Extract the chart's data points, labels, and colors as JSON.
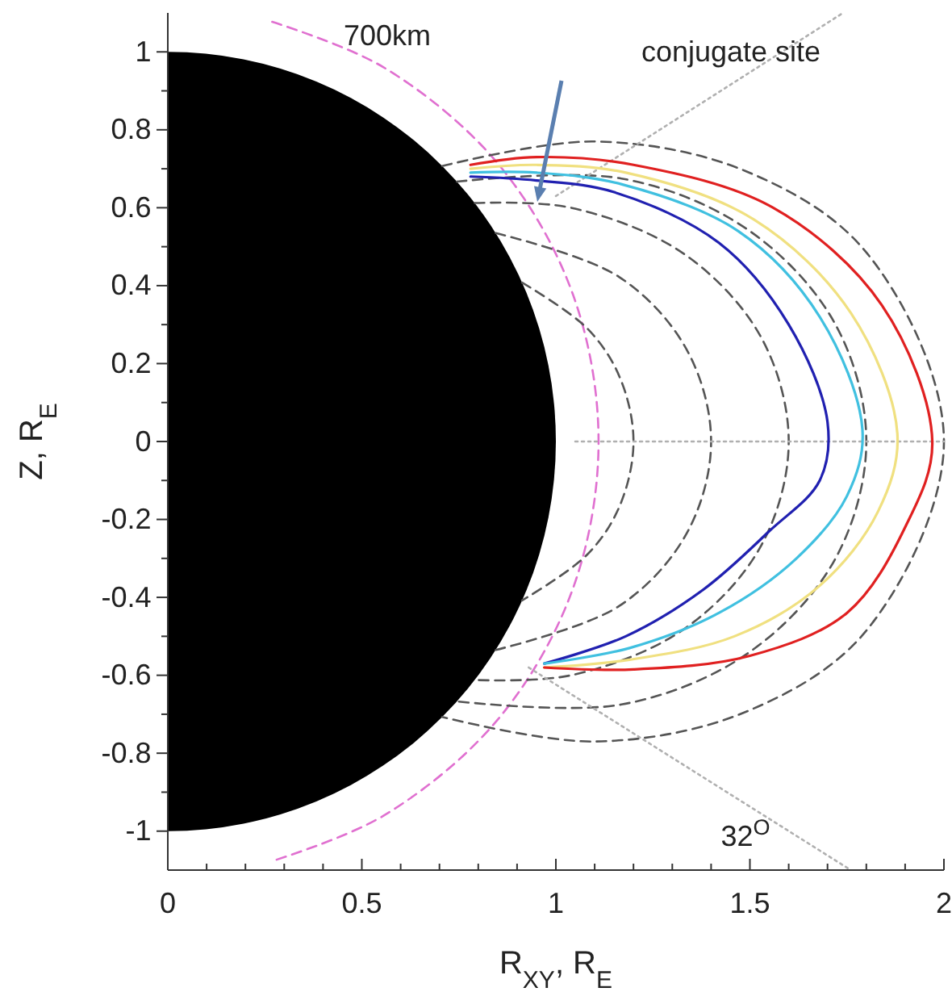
{
  "chart_data": {
    "type": "line",
    "xlabel": "R$_{XY}$, R$_{E}$",
    "ylabel": "Z, R$_{E}$",
    "xlim": [
      0,
      2
    ],
    "ylim": [
      -1.1,
      1.1
    ],
    "xticks": [
      0,
      {
        "value": 0.1,
        "label": null
      },
      {
        "value": 0.2,
        "label": null
      },
      {
        "value": 0.3,
        "label": null
      },
      {
        "value": 0.4,
        "label": null
      },
      0.5,
      {
        "value": 0.6,
        "label": null
      },
      {
        "value": 0.7,
        "label": null
      },
      {
        "value": 0.8,
        "label": null
      },
      {
        "value": 0.9,
        "label": null
      },
      1,
      {
        "value": 1.1,
        "label": null
      },
      {
        "value": 1.2,
        "label": null
      },
      {
        "value": 1.3,
        "label": null
      },
      {
        "value": 1.4,
        "label": null
      },
      1.5,
      {
        "value": 1.6,
        "label": null
      },
      {
        "value": 1.7,
        "label": null
      },
      {
        "value": 1.8,
        "label": null
      },
      {
        "value": 1.9,
        "label": null
      },
      2
    ],
    "yticks": [
      -1,
      {
        "value": -0.9,
        "label": null
      },
      -0.8,
      {
        "value": -0.7,
        "label": null
      },
      -0.6,
      {
        "value": -0.5,
        "label": null
      },
      -0.4,
      {
        "value": -0.3,
        "label": null
      },
      -0.2,
      {
        "value": -0.1,
        "label": null
      },
      0,
      {
        "value": 0.1,
        "label": null
      },
      0.2,
      {
        "value": 0.3,
        "label": null
      },
      0.4,
      {
        "value": 0.5,
        "label": null
      },
      0.6,
      {
        "value": 0.7,
        "label": null
      },
      0.8,
      {
        "value": 0.9,
        "label": null
      },
      1
    ],
    "grid": false,
    "marker": "none",
    "series": [
      {
        "color": "#e070d0",
        "line_style": "dashed",
        "x": [
          0.269,
          0.555,
          0.85,
          1.043,
          1.11,
          1.043,
          0.85,
          0.555,
          0.269
        ],
        "values": [
          1.077,
          0.961,
          0.714,
          0.38,
          0,
          -0.38,
          -0.714,
          -0.961,
          -1.077
        ]
      },
      {
        "color": "#555555",
        "line_style": "dashed",
        "x": [
          0.913,
          1.081,
          1.165,
          1.2,
          1.165,
          1.081,
          0.913
        ],
        "values": [
          0.408,
          0.29,
          0.164,
          0,
          -0.164,
          -0.29,
          -0.408
        ]
      },
      {
        "color": "#555555",
        "line_style": "dashed",
        "x": [
          0.845,
          1.162,
          1.337,
          1.4,
          1.337,
          1.162,
          0.845
        ],
        "values": [
          0.535,
          0.423,
          0.236,
          0,
          -0.236,
          -0.423,
          -0.535
        ]
      },
      {
        "color": "#555555",
        "line_style": "dashed",
        "x": [
          0.791,
          1.039,
          1.328,
          1.528,
          1.6,
          1.528,
          1.328,
          1.039,
          0.791
        ],
        "values": [
          0.612,
          0.6,
          0.483,
          0.269,
          0,
          -0.269,
          -0.483,
          -0.6,
          -0.612
        ]
      },
      {
        "color": "#555555",
        "line_style": "dashed",
        "x": [
          0.745,
          1.169,
          1.494,
          1.719,
          1.8,
          1.719,
          1.494,
          1.169,
          0.745
        ],
        "values": [
          0.667,
          0.675,
          0.544,
          0.303,
          0,
          -0.303,
          -0.544,
          -0.675,
          -0.667
        ]
      },
      {
        "color": "#555555",
        "line_style": "dashed",
        "x": [
          0.707,
          1.099,
          1.489,
          1.802,
          2.0,
          1.802,
          1.489,
          1.099,
          0.707
        ],
        "values": [
          0.707,
          0.77,
          0.694,
          0.483,
          0,
          -0.483,
          -0.694,
          -0.77,
          -0.707
        ]
      },
      {
        "color": "#b0b0b0",
        "line_style": "dotted",
        "x": [
          1.0,
          1.74
        ],
        "values": [
          0.63,
          1.1
        ]
      },
      {
        "color": "#b0b0b0",
        "line_style": "dotted",
        "x": [
          0.93,
          1.76
        ],
        "values": [
          -0.58,
          -1.1
        ]
      },
      {
        "color": "#b0b0b0",
        "line_style": "dotted",
        "x": [
          1.05,
          2.0
        ],
        "values": [
          0,
          0
        ]
      },
      {
        "color": "#2020b0",
        "line_style": "solid",
        "x": [
          0.78,
          0.95,
          1.15,
          1.42,
          1.6,
          1.7,
          1.68,
          1.55,
          1.38,
          1.18,
          0.97
        ],
        "values": [
          0.68,
          0.67,
          0.64,
          0.51,
          0.3,
          0.05,
          -0.1,
          -0.23,
          -0.38,
          -0.5,
          -0.57
        ]
      },
      {
        "color": "#40c0e0",
        "line_style": "solid",
        "x": [
          0.78,
          0.95,
          1.17,
          1.47,
          1.68,
          1.79,
          1.75,
          1.62,
          1.42,
          1.19,
          0.97
        ],
        "values": [
          0.69,
          0.69,
          0.66,
          0.54,
          0.32,
          0.03,
          -0.14,
          -0.3,
          -0.44,
          -0.53,
          -0.57
        ]
      },
      {
        "color": "#f0e080",
        "line_style": "solid",
        "x": [
          0.78,
          0.95,
          1.18,
          1.51,
          1.76,
          1.88,
          1.83,
          1.68,
          1.46,
          1.19,
          0.97
        ],
        "values": [
          0.7,
          0.71,
          0.69,
          0.57,
          0.33,
          0.02,
          -0.18,
          -0.37,
          -0.5,
          -0.56,
          -0.58
        ]
      },
      {
        "color": "#e02020",
        "line_style": "solid",
        "x": [
          0.78,
          0.95,
          1.2,
          1.56,
          1.84,
          1.97,
          1.9,
          1.75,
          1.5,
          1.2,
          0.97
        ],
        "values": [
          0.71,
          0.73,
          0.71,
          0.6,
          0.35,
          0,
          -0.22,
          -0.44,
          -0.55,
          -0.585,
          -0.58
        ]
      }
    ],
    "annotations": [
      "700km",
      "conjugate site",
      "32$^{O}$"
    ]
  }
}
